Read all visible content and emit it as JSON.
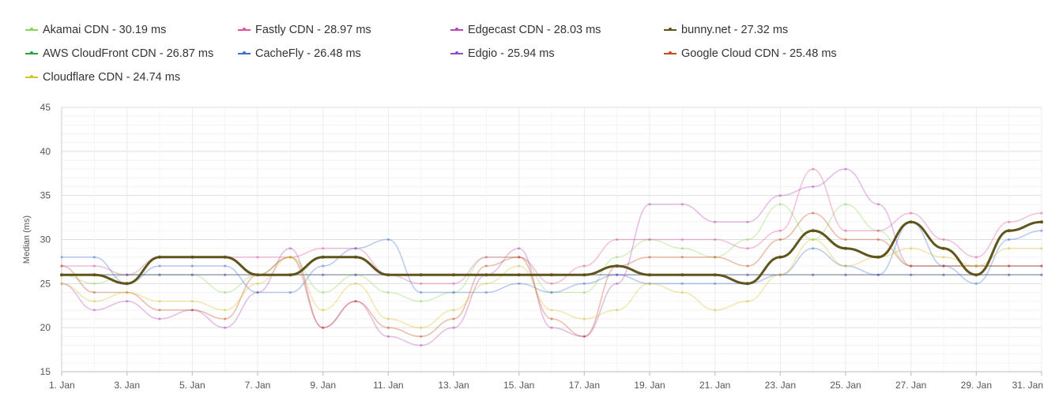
{
  "chart_data": {
    "type": "line",
    "title": "",
    "xlabel": "",
    "ylabel": "Median (ms)",
    "ylim": [
      15,
      45
    ],
    "yticks": [
      15,
      20,
      25,
      30,
      35,
      40,
      45
    ],
    "categories": [
      "1. Jan",
      "2. Jan",
      "3. Jan",
      "4. Jan",
      "5. Jan",
      "6. Jan",
      "7. Jan",
      "8. Jan",
      "9. Jan",
      "10. Jan",
      "11. Jan",
      "12. Jan",
      "13. Jan",
      "14. Jan",
      "15. Jan",
      "16. Jan",
      "17. Jan",
      "18. Jan",
      "19. Jan",
      "20. Jan",
      "21. Jan",
      "22. Jan",
      "23. Jan",
      "24. Jan",
      "25. Jan",
      "26. Jan",
      "27. Jan",
      "28. Jan",
      "29. Jan",
      "30. Jan",
      "31. Jan"
    ],
    "xtick_labels": [
      "1. Jan",
      "3. Jan",
      "5. Jan",
      "7. Jan",
      "9. Jan",
      "11. Jan",
      "13. Jan",
      "15. Jan",
      "17. Jan",
      "19. Jan",
      "21. Jan",
      "23. Jan",
      "25. Jan",
      "27. Jan",
      "29. Jan",
      "31. Jan"
    ],
    "grid": true,
    "legend_placement": "top",
    "highlighted_series": "bunny.net",
    "series": [
      {
        "name": "Akamai CDN",
        "legend": "Akamai CDN - 30.19 ms",
        "color": "#8bd35b",
        "values": [
          26,
          25,
          26,
          26,
          26,
          24,
          26,
          28,
          24,
          26,
          24,
          23,
          24,
          28,
          28,
          24,
          24,
          28,
          30,
          29,
          28,
          30,
          34,
          30,
          34,
          31,
          27,
          27,
          27,
          27,
          27
        ]
      },
      {
        "name": "Fastly CDN",
        "legend": "Fastly CDN - 28.97 ms",
        "color": "#e0529c",
        "values": [
          27,
          27,
          26,
          28,
          28,
          28,
          28,
          28,
          29,
          29,
          26,
          25,
          25,
          28,
          28,
          25,
          27,
          30,
          30,
          30,
          30,
          29,
          31,
          38,
          31,
          31,
          33,
          30,
          28,
          32,
          33
        ]
      },
      {
        "name": "Edgecast CDN",
        "legend": "Edgecast CDN - 28.03 ms",
        "color": "#b849b8",
        "values": [
          25,
          22,
          23,
          21,
          22,
          20,
          24,
          29,
          20,
          23,
          19,
          18,
          20,
          26,
          29,
          20,
          19,
          25,
          34,
          34,
          32,
          32,
          35,
          36,
          38,
          34,
          27,
          27,
          27,
          27,
          27
        ]
      },
      {
        "name": "bunny.net",
        "legend": "bunny.net - 27.32 ms",
        "color": "#5e541c",
        "values": [
          26,
          26,
          25,
          28,
          28,
          28,
          26,
          26,
          28,
          28,
          26,
          26,
          26,
          26,
          26,
          26,
          26,
          27,
          26,
          26,
          26,
          25,
          28,
          31,
          29,
          28,
          32,
          29,
          26,
          31,
          32
        ]
      },
      {
        "name": "AWS CloudFront CDN",
        "legend": "AWS CloudFront CDN - 26.87 ms",
        "color": "#2f9e44",
        "values": [
          26,
          26,
          26,
          26,
          26,
          26,
          26,
          26,
          26,
          26,
          26,
          26,
          26,
          26,
          26,
          26,
          26,
          26,
          26,
          26,
          26,
          26,
          26,
          26,
          26,
          26,
          26,
          26,
          26,
          26,
          26
        ]
      },
      {
        "name": "CacheFly",
        "legend": "CacheFly - 26.48 ms",
        "color": "#3b6fd6",
        "values": [
          28,
          28,
          25,
          27,
          27,
          27,
          24,
          24,
          27,
          29,
          30,
          24,
          24,
          24,
          25,
          24,
          25,
          26,
          25,
          25,
          25,
          25,
          26,
          29,
          27,
          26,
          32,
          27,
          25,
          30,
          31
        ]
      },
      {
        "name": "Edgio",
        "legend": "Edgio - 25.94 ms",
        "color": "#8b4fd0",
        "values": [
          26,
          26,
          26,
          26,
          26,
          26,
          26,
          26,
          26,
          26,
          26,
          26,
          26,
          26,
          26,
          26,
          26,
          26,
          26,
          26,
          26,
          26,
          26,
          26,
          26,
          26,
          26,
          26,
          26,
          26,
          26
        ]
      },
      {
        "name": "Google Cloud CDN",
        "legend": "Google Cloud CDN - 25.48 ms",
        "color": "#c84b1e",
        "values": [
          27,
          24,
          24,
          22,
          22,
          21,
          26,
          28,
          20,
          23,
          20,
          19,
          21,
          27,
          28,
          21,
          19,
          27,
          28,
          28,
          28,
          27,
          30,
          33,
          30,
          30,
          27,
          27,
          27,
          27,
          27
        ]
      },
      {
        "name": "Cloudflare CDN",
        "legend": "Cloudflare CDN - 24.74 ms",
        "color": "#d8c02b",
        "values": [
          25,
          23,
          24,
          23,
          23,
          22,
          25,
          28,
          22,
          25,
          21,
          20,
          22,
          25,
          27,
          22,
          21,
          22,
          25,
          24,
          22,
          23,
          26,
          30,
          27,
          28,
          29,
          28,
          27,
          29,
          29
        ]
      }
    ]
  }
}
